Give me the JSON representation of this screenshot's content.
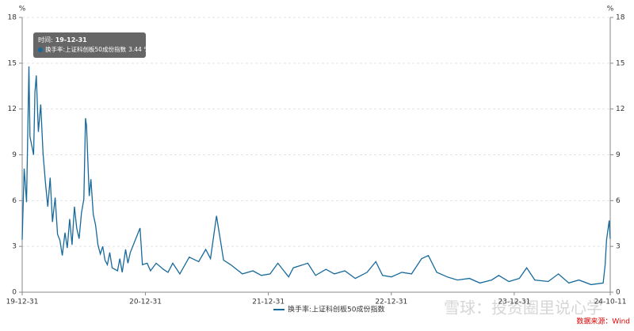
{
  "chart_data": {
    "type": "line",
    "y_unit": "%",
    "tooltip_time_label": "时间:",
    "source": "数据来源：Wind",
    "watermark": "雪球：投资圈里说心学",
    "x": [
      "19-12-31",
      "20-01-06",
      "20-01-13",
      "20-01-20",
      "20-01-23",
      "20-02-03",
      "20-02-07",
      "20-02-11",
      "20-02-17",
      "20-02-24",
      "20-03-02",
      "20-03-09",
      "20-03-16",
      "20-03-23",
      "20-03-30",
      "20-04-07",
      "20-04-14",
      "20-04-21",
      "20-04-28",
      "20-05-06",
      "20-05-13",
      "20-05-20",
      "20-05-27",
      "20-06-03",
      "20-06-10",
      "20-06-17",
      "20-06-24",
      "20-07-01",
      "20-07-06",
      "20-07-09",
      "20-07-14",
      "20-07-17",
      "20-07-22",
      "20-07-29",
      "20-08-05",
      "20-08-12",
      "20-08-19",
      "20-08-26",
      "20-09-02",
      "20-09-09",
      "20-09-16",
      "20-09-23",
      "20-10-09",
      "20-10-16",
      "20-10-23",
      "20-11-02",
      "20-11-09",
      "20-11-16",
      "20-12-15",
      "20-12-22",
      "21-01-05",
      "21-01-15",
      "21-02-01",
      "21-02-22",
      "21-03-08",
      "21-03-22",
      "21-04-12",
      "21-05-10",
      "21-06-07",
      "21-06-28",
      "21-07-12",
      "21-07-30",
      "21-08-20",
      "21-09-10",
      "21-10-15",
      "21-11-15",
      "21-12-10",
      "22-01-05",
      "22-01-28",
      "22-03-01",
      "22-03-15",
      "22-04-27",
      "22-05-20",
      "22-06-20",
      "22-07-15",
      "22-08-15",
      "22-09-15",
      "22-10-20",
      "22-11-15",
      "22-12-05",
      "22-12-31",
      "23-01-31",
      "23-03-01",
      "23-03-31",
      "23-04-20",
      "23-05-15",
      "23-06-15",
      "23-07-15",
      "23-08-20",
      "23-09-20",
      "23-10-25",
      "23-11-15",
      "23-12-15",
      "24-01-15",
      "24-02-06",
      "24-03-01",
      "24-04-10",
      "24-05-10",
      "24-06-10",
      "24-07-10",
      "24-08-15",
      "24-09-20",
      "24-09-26",
      "24-09-30",
      "24-10-08",
      "24-10-11"
    ],
    "series": [
      {
        "name": "换手率:上证科创板50成份指数",
        "color": "#17699a",
        "values": [
          3.44,
          8.1,
          5.9,
          14.8,
          10.2,
          9.0,
          13.1,
          14.2,
          10.5,
          12.3,
          9.1,
          7.2,
          5.6,
          7.5,
          4.6,
          6.2,
          3.8,
          3.4,
          2.4,
          3.9,
          2.9,
          4.8,
          3.1,
          5.6,
          4.2,
          3.5,
          5.2,
          6.1,
          11.4,
          10.9,
          8.0,
          6.3,
          7.4,
          5.1,
          4.4,
          3.1,
          2.5,
          3.0,
          2.1,
          1.8,
          2.6,
          1.6,
          1.4,
          2.2,
          1.3,
          2.8,
          1.9,
          2.6,
          4.2,
          1.8,
          1.9,
          1.4,
          1.9,
          1.5,
          1.3,
          1.9,
          1.2,
          2.3,
          2.0,
          2.8,
          2.2,
          5.0,
          2.1,
          1.8,
          1.2,
          1.4,
          1.1,
          1.2,
          1.9,
          1.0,
          1.6,
          1.9,
          1.1,
          1.5,
          1.2,
          1.4,
          0.9,
          1.3,
          2.0,
          1.1,
          1.0,
          1.3,
          1.2,
          2.2,
          2.4,
          1.3,
          1.0,
          0.8,
          0.9,
          0.6,
          0.8,
          1.1,
          0.7,
          0.9,
          1.6,
          0.8,
          0.7,
          1.2,
          0.6,
          0.8,
          0.5,
          0.6,
          1.8,
          3.4,
          4.7,
          3.5
        ]
      }
    ],
    "xlim": [
      "19-12-31",
      "24-10-11"
    ],
    "xticks": [
      "19-12-31",
      "20-12-31",
      "21-12-31",
      "22-12-31",
      "23-12-31",
      "24-10-11"
    ],
    "ylim": [
      0,
      18
    ],
    "yticks": [
      0,
      3,
      6,
      9,
      12,
      15,
      18
    ],
    "y2lim": [
      0,
      18
    ],
    "y2ticks": [
      0,
      3,
      6,
      9,
      12,
      15,
      18
    ],
    "grid": true
  }
}
